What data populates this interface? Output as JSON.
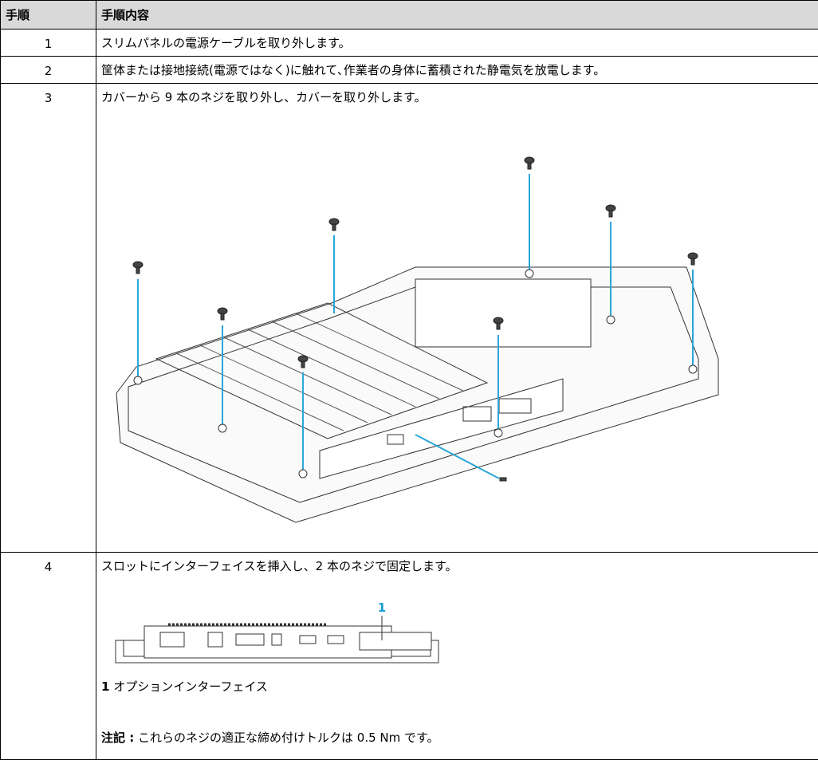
{
  "table": {
    "header": [
      "手順",
      "手順内容"
    ],
    "rows": [
      {
        "step": "1",
        "text": "スリムパネルの電源ケーブルを取り外します。"
      },
      {
        "step": "2",
        "text": "筐体または接地接続(電源ではなく)に触れて､作業者の身体に蓄積された静電気を放電します。"
      },
      {
        "step": "3",
        "text": "カバーから 9 本のネジを取り外し、カバーを取り外します。"
      },
      {
        "step": "4",
        "text": "スロットにインターフェイスを挿入し、2 本のネジで固定します。",
        "callout": "1",
        "caption_number": "1",
        "caption_text": "オプションインターフェイス",
        "note_label": "注記 :",
        "note_text": "これらのネジの適正な締め付けトルクは 0.5 Nm です。"
      }
    ]
  }
}
